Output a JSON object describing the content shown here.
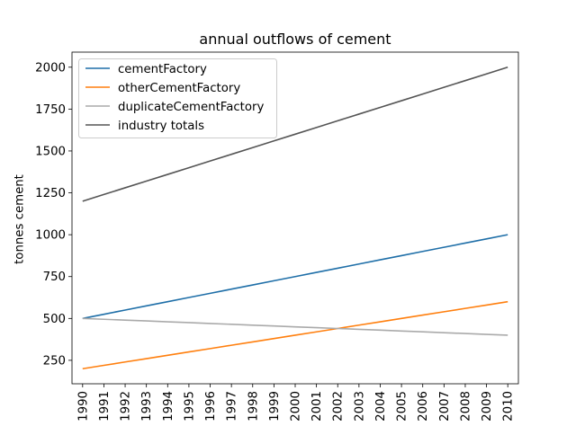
{
  "chart_data": {
    "type": "line",
    "title": "annual outflows of cement",
    "xlabel": "",
    "ylabel": "tonnes cement",
    "x": [
      1990,
      1991,
      1992,
      1993,
      1994,
      1995,
      1996,
      1997,
      1998,
      1999,
      2000,
      2001,
      2002,
      2003,
      2004,
      2005,
      2006,
      2007,
      2008,
      2009,
      2010
    ],
    "xlim": [
      1989.5,
      2010.5
    ],
    "ylim": [
      110,
      2090
    ],
    "yticks": [
      250,
      500,
      750,
      1000,
      1250,
      1500,
      1750,
      2000
    ],
    "grid": false,
    "legend_position": "upper-left",
    "x_tick_rotation": "vertical",
    "series": [
      {
        "name": "cementFactory",
        "color": "#1f6fa8",
        "values": [
          500,
          525,
          550,
          575,
          600,
          625,
          650,
          675,
          700,
          725,
          750,
          775,
          800,
          825,
          850,
          875,
          900,
          925,
          950,
          975,
          1000
        ]
      },
      {
        "name": "otherCementFactory",
        "color": "#ff7f0e",
        "values": [
          200,
          220,
          240,
          260,
          280,
          300,
          320,
          340,
          360,
          380,
          400,
          420,
          440,
          460,
          480,
          500,
          520,
          540,
          560,
          580,
          600
        ]
      },
      {
        "name": "duplicateCementFactory",
        "color": "#aaaaaa",
        "values": [
          500,
          495,
          490,
          485,
          480,
          475,
          470,
          465,
          460,
          455,
          450,
          445,
          440,
          435,
          430,
          425,
          420,
          415,
          410,
          405,
          400
        ]
      },
      {
        "name": "industry totals",
        "color": "#555555",
        "values": [
          1200,
          1240,
          1280,
          1320,
          1360,
          1400,
          1440,
          1480,
          1520,
          1560,
          1600,
          1640,
          1680,
          1720,
          1760,
          1800,
          1840,
          1880,
          1920,
          1960,
          2000
        ]
      }
    ]
  }
}
